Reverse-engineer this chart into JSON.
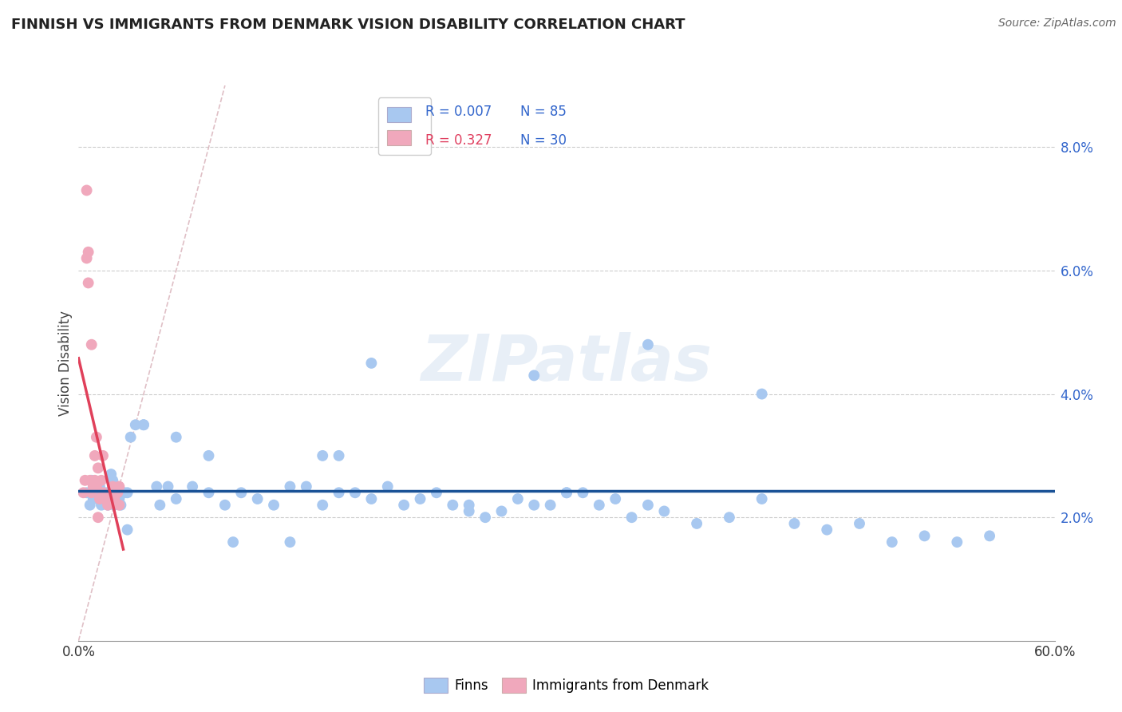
{
  "title": "FINNISH VS IMMIGRANTS FROM DENMARK VISION DISABILITY CORRELATION CHART",
  "source": "Source: ZipAtlas.com",
  "ylabel": "Vision Disability",
  "watermark": "ZIPatlas",
  "ylim": [
    0.0,
    0.09
  ],
  "xlim": [
    0.0,
    0.6
  ],
  "yticks": [
    0.02,
    0.04,
    0.06,
    0.08
  ],
  "ytick_labels": [
    "2.0%",
    "4.0%",
    "6.0%",
    "8.0%"
  ],
  "xticks": [
    0.0,
    0.1,
    0.2,
    0.3,
    0.4,
    0.5,
    0.6
  ],
  "blue_color": "#a8c8f0",
  "pink_color": "#f0a8bc",
  "blue_line_color": "#1a5296",
  "pink_line_color": "#e0405a",
  "dashed_line_color": "#d8b0b8",
  "finns_x": [
    0.005,
    0.007,
    0.008,
    0.009,
    0.01,
    0.011,
    0.012,
    0.013,
    0.014,
    0.015,
    0.016,
    0.017,
    0.018,
    0.019,
    0.02,
    0.021,
    0.022,
    0.023,
    0.024,
    0.025,
    0.026,
    0.028,
    0.03,
    0.04,
    0.05,
    0.06,
    0.07,
    0.08,
    0.09,
    0.1,
    0.11,
    0.12,
    0.13,
    0.14,
    0.15,
    0.16,
    0.17,
    0.18,
    0.19,
    0.2,
    0.21,
    0.22,
    0.23,
    0.24,
    0.25,
    0.26,
    0.27,
    0.28,
    0.29,
    0.3,
    0.31,
    0.32,
    0.33,
    0.34,
    0.35,
    0.36,
    0.38,
    0.4,
    0.42,
    0.44,
    0.46,
    0.48,
    0.5,
    0.52,
    0.54,
    0.56,
    0.28,
    0.42,
    0.35,
    0.13,
    0.08,
    0.06,
    0.03,
    0.095,
    0.16,
    0.24,
    0.3,
    0.18,
    0.04,
    0.02,
    0.032,
    0.035,
    0.048,
    0.055,
    0.15
  ],
  "finns_y": [
    0.024,
    0.022,
    0.026,
    0.023,
    0.024,
    0.025,
    0.023,
    0.025,
    0.022,
    0.024,
    0.023,
    0.024,
    0.022,
    0.024,
    0.023,
    0.026,
    0.022,
    0.024,
    0.025,
    0.023,
    0.022,
    0.024,
    0.024,
    0.035,
    0.022,
    0.023,
    0.025,
    0.024,
    0.022,
    0.024,
    0.023,
    0.022,
    0.025,
    0.025,
    0.022,
    0.024,
    0.024,
    0.023,
    0.025,
    0.022,
    0.023,
    0.024,
    0.022,
    0.021,
    0.02,
    0.021,
    0.023,
    0.022,
    0.022,
    0.024,
    0.024,
    0.022,
    0.023,
    0.02,
    0.022,
    0.021,
    0.019,
    0.02,
    0.023,
    0.019,
    0.018,
    0.019,
    0.016,
    0.017,
    0.016,
    0.017,
    0.043,
    0.04,
    0.048,
    0.016,
    0.03,
    0.033,
    0.018,
    0.016,
    0.03,
    0.022,
    0.024,
    0.045,
    0.035,
    0.027,
    0.033,
    0.035,
    0.025,
    0.025,
    0.03
  ],
  "denmark_x": [
    0.003,
    0.004,
    0.005,
    0.006,
    0.006,
    0.007,
    0.008,
    0.009,
    0.01,
    0.01,
    0.011,
    0.011,
    0.012,
    0.013,
    0.014,
    0.015,
    0.016,
    0.018,
    0.018,
    0.02,
    0.021,
    0.022,
    0.023,
    0.024,
    0.025,
    0.025,
    0.005,
    0.008,
    0.012,
    0.015
  ],
  "denmark_y": [
    0.024,
    0.026,
    0.062,
    0.063,
    0.058,
    0.026,
    0.024,
    0.025,
    0.03,
    0.026,
    0.033,
    0.025,
    0.028,
    0.023,
    0.026,
    0.024,
    0.023,
    0.023,
    0.022,
    0.023,
    0.025,
    0.023,
    0.024,
    0.024,
    0.025,
    0.022,
    0.073,
    0.048,
    0.02,
    0.03
  ]
}
